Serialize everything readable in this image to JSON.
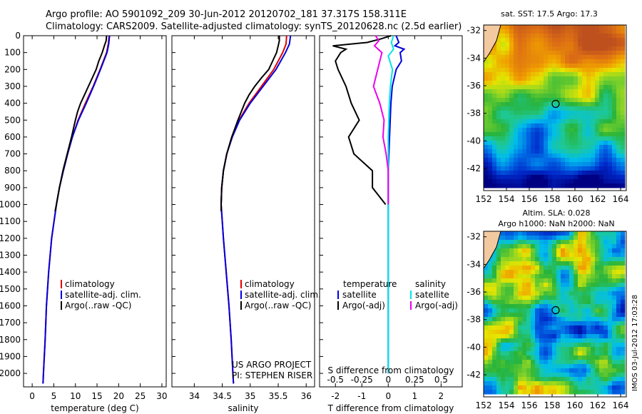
{
  "header": {
    "line1": "Argo profile: AO 5901092_209 30-Jun-2012 20120702_181 37.317S 158.311E",
    "line2": "Climatology: CARS2009. Satellite-adjusted climatology: synTS_20120628.nc (2.5d earlier)"
  },
  "colors": {
    "climatology": "#e00000",
    "satellite": "#0000dd",
    "argo": "#000000",
    "sat_salinity": "#00e6e6",
    "argo_salinity": "#ee00ee"
  },
  "chart_data": [
    {
      "type": "line",
      "id": "temperature",
      "xlabel": "temperature (deg C)",
      "ylabel": "",
      "xlim": [
        -2,
        31
      ],
      "ylim": [
        2080,
        0
      ],
      "xticks": [
        0,
        5,
        10,
        15,
        20,
        25,
        30
      ],
      "yticks": [
        0,
        100,
        200,
        300,
        400,
        500,
        600,
        700,
        800,
        900,
        1000,
        1100,
        1200,
        1300,
        1400,
        1500,
        1600,
        1700,
        1800,
        1900,
        2000
      ],
      "legend": [
        "climatology",
        "satellite-adj. clim.",
        "Argo(..raw -QC)"
      ],
      "series": [
        {
          "name": "climatology",
          "depth": [
            0,
            50,
            100,
            200,
            300,
            400,
            500,
            600,
            700,
            800,
            900,
            1000,
            1200,
            1400,
            1600,
            1800,
            2000,
            2060
          ],
          "values": [
            17.8,
            17.6,
            17.2,
            15.7,
            14.1,
            12.3,
            10.6,
            9.3,
            8.2,
            7.2,
            6.3,
            5.6,
            4.5,
            3.8,
            3.3,
            3.0,
            2.6,
            2.5
          ]
        },
        {
          "name": "satellite-adj. clim.",
          "depth": [
            0,
            50,
            100,
            200,
            300,
            400,
            500,
            600,
            700,
            800,
            900,
            1000,
            1200,
            1400,
            1600,
            1800,
            2000,
            2060
          ],
          "values": [
            17.9,
            17.7,
            17.3,
            15.8,
            14.2,
            12.5,
            10.7,
            9.3,
            8.2,
            7.2,
            6.3,
            5.6,
            4.5,
            3.8,
            3.3,
            3.0,
            2.6,
            2.5
          ]
        },
        {
          "name": "Argo(..raw -QC)",
          "depth": [
            0,
            30,
            60,
            100,
            150,
            200,
            250,
            300,
            350,
            400,
            450,
            500,
            600,
            700,
            800,
            900,
            1000,
            1040
          ],
          "values": [
            17.2,
            17.1,
            16.7,
            16.2,
            15.4,
            14.8,
            13.9,
            13.0,
            12.1,
            11.2,
            10.5,
            10.0,
            9.1,
            8.1,
            7.1,
            6.3,
            5.6,
            5.3
          ]
        }
      ]
    },
    {
      "type": "line",
      "id": "salinity",
      "xlabel": "salinity",
      "xlim": [
        33.6,
        36.15
      ],
      "ylim": [
        2080,
        0
      ],
      "xticks": [
        34,
        34.5,
        35,
        35.5,
        36
      ],
      "legend": [
        "climatology",
        "satellite-adj. clim.",
        "Argo(..raw -QC)"
      ],
      "annotation": [
        "US ARGO PROJECT",
        "PI: STEPHEN RISER"
      ],
      "series": [
        {
          "name": "climatology",
          "depth": [
            0,
            50,
            100,
            200,
            300,
            400,
            500,
            600,
            700,
            800,
            900,
            1000,
            1200,
            1400,
            1600,
            1800,
            2000,
            2060
          ],
          "values": [
            35.65,
            35.64,
            35.58,
            35.42,
            35.2,
            34.98,
            34.8,
            34.67,
            34.58,
            34.52,
            34.49,
            34.48,
            34.52,
            34.57,
            34.62,
            34.66,
            34.69,
            34.7
          ]
        },
        {
          "name": "satellite-adj. clim.",
          "depth": [
            0,
            50,
            100,
            200,
            300,
            400,
            500,
            600,
            700,
            800,
            900,
            1000,
            1200,
            1400,
            1600,
            1800,
            2000,
            2060
          ],
          "values": [
            35.72,
            35.7,
            35.63,
            35.46,
            35.23,
            35.0,
            34.81,
            34.68,
            34.58,
            34.52,
            34.49,
            34.48,
            34.52,
            34.57,
            34.62,
            34.66,
            34.69,
            34.7
          ]
        },
        {
          "name": "Argo(..raw -QC)",
          "depth": [
            0,
            30,
            60,
            100,
            150,
            200,
            250,
            300,
            350,
            400,
            450,
            500,
            600,
            700,
            800,
            900,
            1000,
            1040
          ],
          "values": [
            35.52,
            35.52,
            35.5,
            35.47,
            35.4,
            35.33,
            35.2,
            35.08,
            34.98,
            34.9,
            34.84,
            34.78,
            34.67,
            34.58,
            34.52,
            34.49,
            34.48,
            34.48
          ]
        }
      ]
    },
    {
      "type": "line",
      "id": "difference",
      "xlabel": "T difference from climatology",
      "xlabel_top": "S difference from climatology",
      "xlim": [
        -2.6,
        2.8
      ],
      "ylim": [
        2080,
        0
      ],
      "xticks": [
        -2,
        -1,
        0,
        1,
        2
      ],
      "xticks_top": [
        -0.5,
        -0.25,
        0,
        0.25,
        0.5
      ],
      "legend_titles": [
        "temperature",
        "salinity"
      ],
      "legend": [
        "satellite",
        "Argo(-adj)",
        "satellite",
        "Argo(-adj)"
      ],
      "series": [
        {
          "name": "temperature satellite",
          "depth": [
            0,
            40,
            60,
            80,
            100,
            150,
            200,
            300,
            400,
            600,
            800,
            1000,
            1500,
            2000
          ],
          "values": [
            0.3,
            0.4,
            0.25,
            0.6,
            0.45,
            0.5,
            0.3,
            0.15,
            0.1,
            0.05,
            0.0,
            0.0,
            0.0,
            0.0
          ]
        },
        {
          "name": "temperature Argo(-adj)",
          "depth": [
            0,
            20,
            40,
            60,
            80,
            100,
            150,
            200,
            300,
            400,
            500,
            600,
            700,
            800,
            900,
            1000
          ],
          "values": [
            0.1,
            -0.3,
            -0.8,
            -2.1,
            -1.6,
            -1.8,
            -2.0,
            -1.9,
            -1.6,
            -1.4,
            -1.1,
            -1.5,
            -1.3,
            -0.6,
            -0.6,
            -0.1
          ]
        },
        {
          "name": "salinity satellite",
          "depth": [
            0,
            40,
            80,
            120,
            200,
            300,
            400,
            600,
            800,
            1000,
            1500,
            2000
          ],
          "values": [
            0.05,
            0.03,
            0.05,
            0.0,
            0.04,
            0.02,
            0.01,
            0.0,
            0.0,
            0.0,
            0.0,
            0.0
          ]
        },
        {
          "name": "salinity Argo(-adj)",
          "depth": [
            0,
            30,
            60,
            100,
            200,
            300,
            400,
            500,
            600,
            700,
            800,
            1000
          ],
          "values": [
            -0.12,
            -0.09,
            -0.13,
            -0.06,
            -0.1,
            -0.14,
            -0.08,
            -0.04,
            -0.05,
            -0.02,
            0.0,
            0.0
          ]
        }
      ]
    },
    {
      "type": "heatmap",
      "id": "sst-map",
      "title": "sat. SST: 17.5  Argo: 17.3",
      "xticks": [
        152,
        154,
        156,
        158,
        160,
        162,
        164
      ],
      "yticks": [
        -32,
        -34,
        -36,
        -38,
        -40,
        -42
      ],
      "xlim": [
        152,
        164.5
      ],
      "ylim": [
        -43.6,
        -31.6
      ],
      "marker": [
        158.311,
        -37.317
      ]
    },
    {
      "type": "heatmap",
      "id": "sla-map",
      "title": "Altim. SLA: 0.028",
      "subtitle": "Argo h1000: NaN h2000: NaN",
      "xticks": [
        152,
        154,
        156,
        158,
        160,
        162,
        164
      ],
      "yticks": [
        -32,
        -34,
        -36,
        -38,
        -40,
        -42
      ],
      "xlim": [
        152,
        164.5
      ],
      "ylim": [
        -43.6,
        -31.6
      ],
      "marker": [
        158.311,
        -37.317
      ]
    }
  ],
  "footer": {
    "stamp": "IMOS 03-Jul-2012 17:03:28"
  }
}
